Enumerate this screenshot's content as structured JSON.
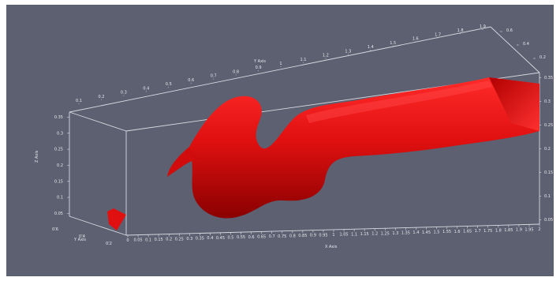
{
  "viewer": {
    "background": "#5c6070",
    "surface_color": "#e01010",
    "axes_color": "#d9dbe2"
  },
  "axes": {
    "x_title": "X Axis",
    "y_title": "Y Axis",
    "z_title": "Z Axis",
    "top_title": "Y Axis",
    "z_left_ticks": [
      "0.05",
      "0.1",
      "0.15",
      "0.2",
      "0.25",
      "0.3",
      "0.35"
    ],
    "z_right_ticks": [
      "0.35",
      "0.3",
      "0.25",
      "0.2",
      "0.15",
      "0.1",
      "0.05"
    ],
    "x_bottom_ticks": [
      "0",
      "0.05",
      "0.1",
      "0.15",
      "0.2",
      "0.25",
      "0.3",
      "0.35",
      "0.4",
      "0.45",
      "0.5",
      "0.55",
      "0.6",
      "0.65",
      "0.7",
      "0.75",
      "0.8",
      "0.85",
      "0.9",
      "0.95",
      "1",
      "1.05",
      "1.1",
      "1.15",
      "1.2",
      "1.25",
      "1.3",
      "1.35",
      "1.4",
      "1.45",
      "1.5",
      "1.55",
      "1.6",
      "1.65",
      "1.7",
      "1.75",
      "1.8",
      "1.85",
      "1.9",
      "1.95",
      "2"
    ],
    "x_top_ticks": [
      "0.1",
      "0.2",
      "0.3",
      "0.4",
      "0.5",
      "0.6",
      "0.7",
      "0.8",
      "0.9",
      "1",
      "1.1",
      "1.2",
      "1.3",
      "1.4",
      "1.5",
      "1.6",
      "1.7",
      "1.8",
      "1.9"
    ],
    "y_bottom_ticks": [
      "0.6",
      "0.4",
      "0.2"
    ],
    "y_top_ticks": [
      "0.6",
      "0.4",
      "0.2"
    ]
  }
}
